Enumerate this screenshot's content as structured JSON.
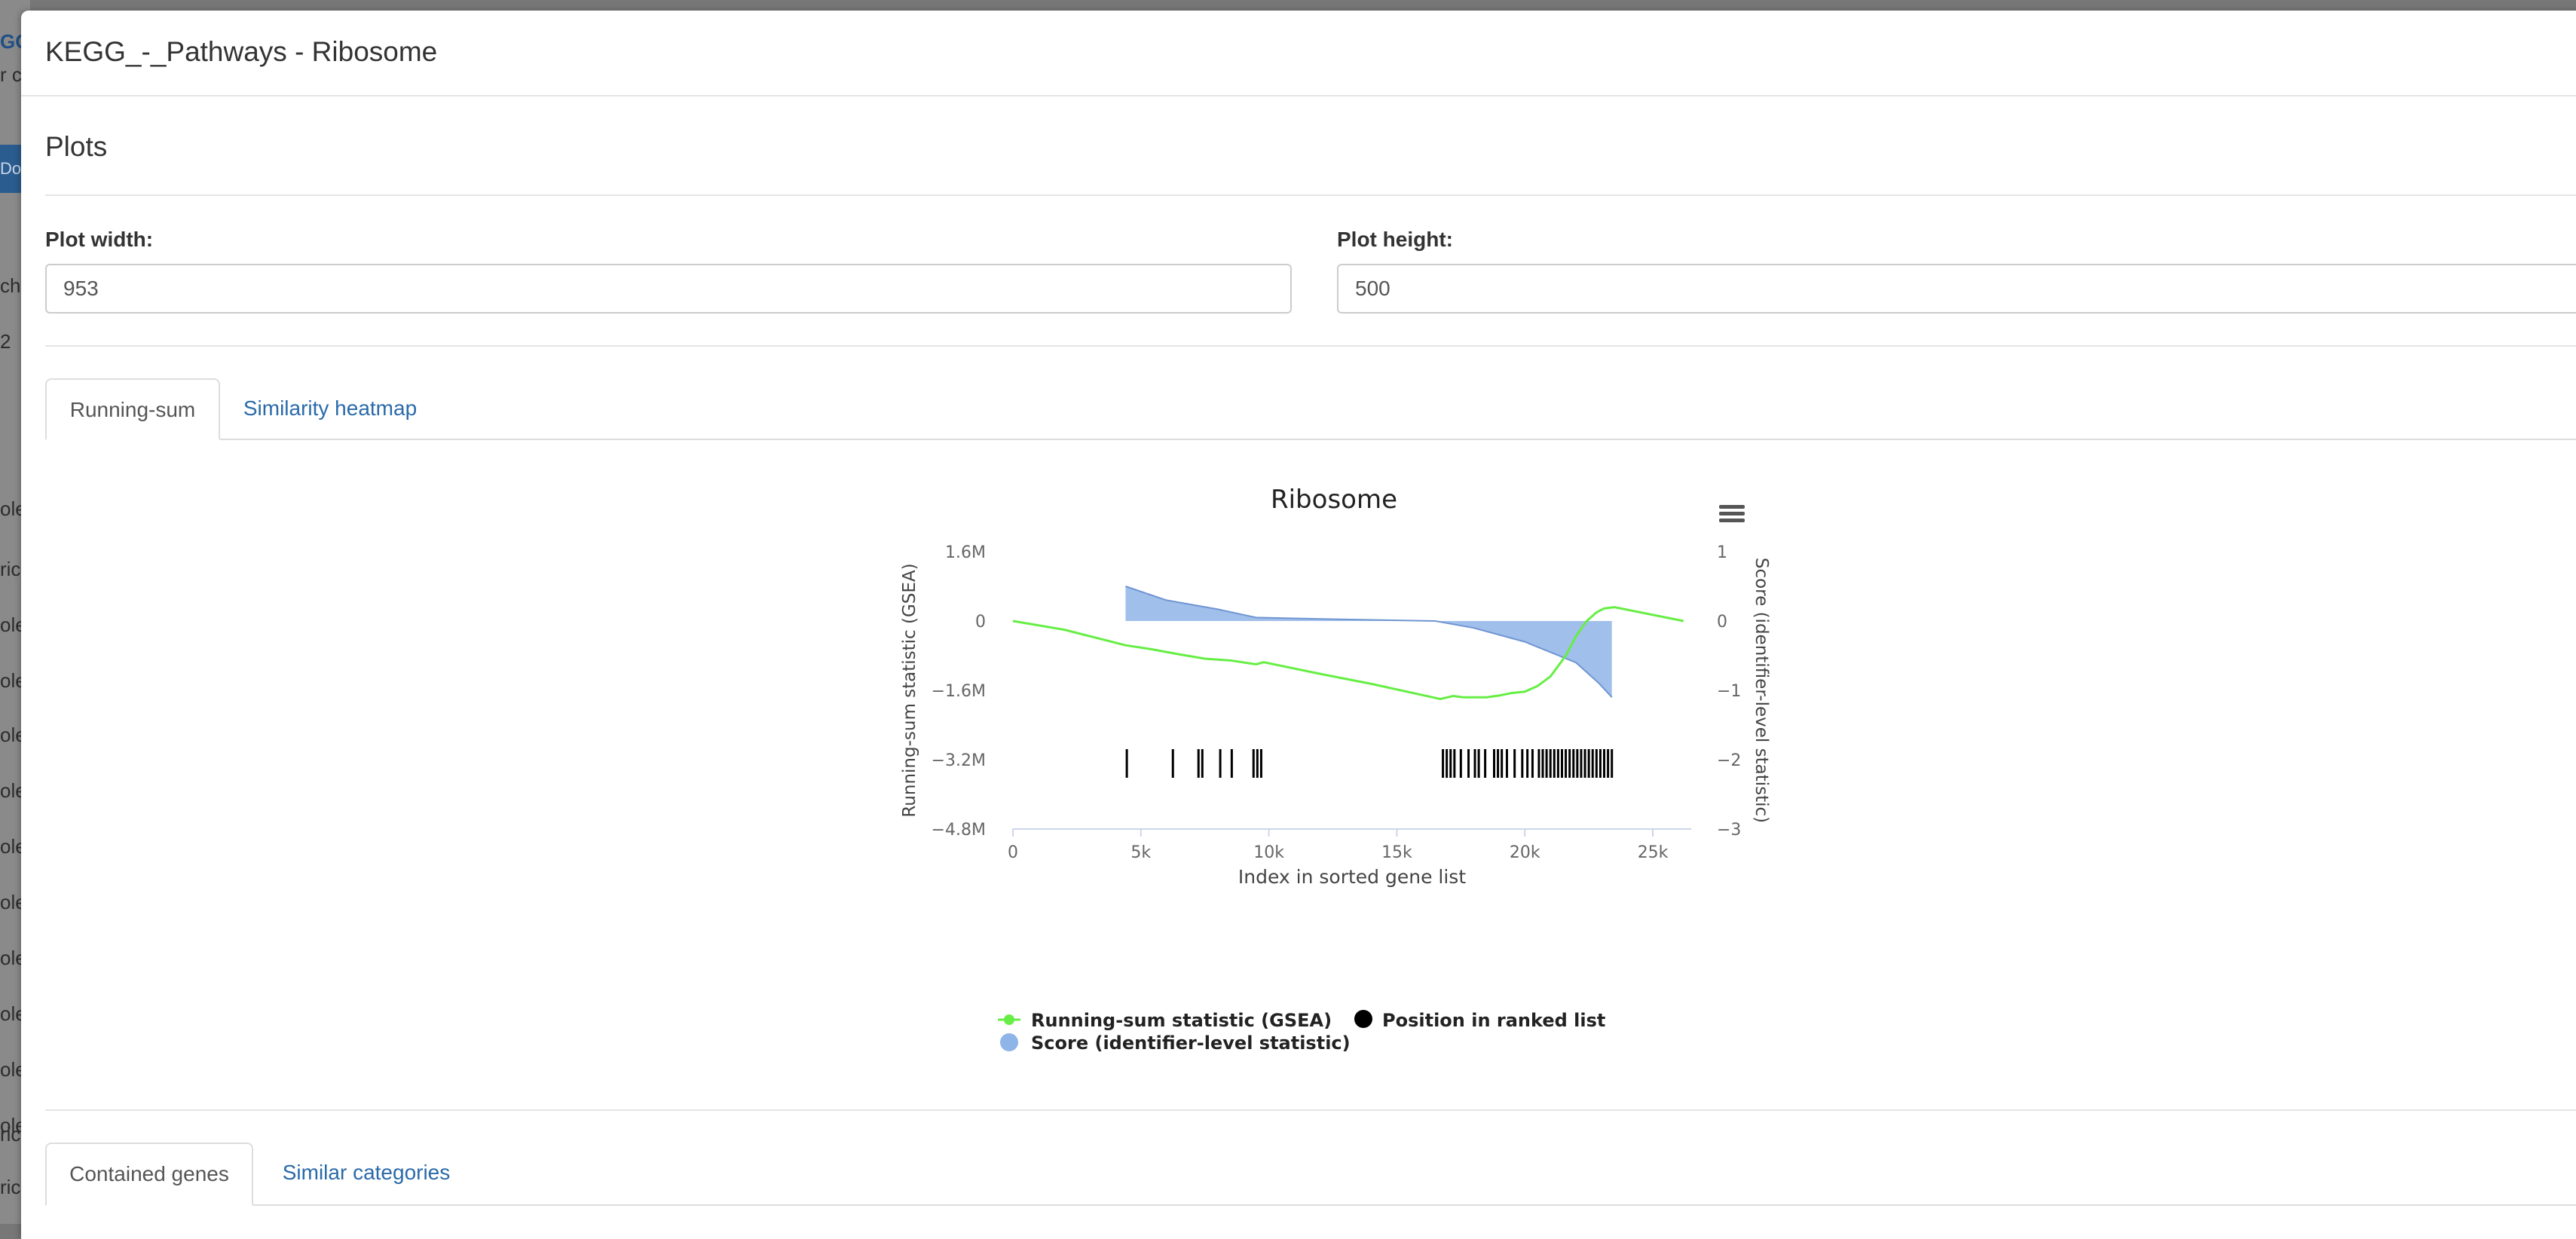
{
  "background": {
    "fragments": [
      "GC",
      "r c",
      "Dou",
      "chr",
      "2",
      "ole",
      "ricl",
      "ole",
      "ole",
      "ole",
      "ole",
      "ole",
      "ole",
      "ole",
      "ole",
      "ole",
      "ole",
      "ricl",
      "ricl"
    ]
  },
  "modal": {
    "title": "KEGG_-_Pathways - Ribosome",
    "section_title": "Plots",
    "plot_width_label": "Plot width:",
    "plot_width_value": "953",
    "plot_height_label": "Plot height:",
    "plot_height_value": "500",
    "plot_tabs": [
      {
        "label": "Running-sum",
        "active": true
      },
      {
        "label": "Similarity heatmap",
        "active": false
      }
    ],
    "bottom_tabs": [
      {
        "label": "Contained genes",
        "active": true
      },
      {
        "label": "Similar categories",
        "active": false
      }
    ]
  },
  "chart_data": {
    "type": "line",
    "title": "Ribosome",
    "xlabel": "Index in sorted gene list",
    "ylabel_left": "Running-sum statistic (GSEA)",
    "ylabel_right": "Score (identifier-level statistic)",
    "xlim": [
      0,
      26500
    ],
    "ylim_left": [
      -4800000,
      1600000
    ],
    "ylim_right": [
      -3,
      1
    ],
    "x_ticks": [
      "0",
      "5k",
      "10k",
      "15k",
      "20k",
      "25k"
    ],
    "y_left_ticks": [
      "1.6M",
      "0",
      "−1.6M",
      "−3.2M",
      "−4.8M"
    ],
    "y_right_ticks": [
      "1",
      "0",
      "−1",
      "−2",
      "−3"
    ],
    "colors": {
      "running_sum": "#66ee44",
      "score": "#8fb4e8",
      "position": "#000000"
    },
    "legend": {
      "running_sum": "Running-sum statistic (GSEA)",
      "position": "Position in ranked list",
      "score": "Score (identifier-level statistic)"
    },
    "series": [
      {
        "name": "Running-sum statistic (GSEA)",
        "axis": "left",
        "points": [
          [
            0,
            0
          ],
          [
            2000,
            -200000
          ],
          [
            4400,
            -560000
          ],
          [
            5400,
            -650000
          ],
          [
            6500,
            -770000
          ],
          [
            7500,
            -870000
          ],
          [
            8500,
            -910000
          ],
          [
            9500,
            -1000000
          ],
          [
            9800,
            -950000
          ],
          [
            12000,
            -1220000
          ],
          [
            14000,
            -1450000
          ],
          [
            16700,
            -1800000
          ],
          [
            17200,
            -1730000
          ],
          [
            17600,
            -1760000
          ],
          [
            18500,
            -1760000
          ],
          [
            19000,
            -1720000
          ],
          [
            19500,
            -1660000
          ],
          [
            20000,
            -1630000
          ],
          [
            20500,
            -1500000
          ],
          [
            21000,
            -1280000
          ],
          [
            21600,
            -800000
          ],
          [
            22000,
            -350000
          ],
          [
            22400,
            -10000
          ],
          [
            22800,
            200000
          ],
          [
            23100,
            290000
          ],
          [
            23500,
            320000
          ],
          [
            26200,
            0
          ]
        ]
      },
      {
        "name": "Score (identifier-level statistic)",
        "axis": "right",
        "points": [
          [
            4400,
            0.5
          ],
          [
            6000,
            0.3
          ],
          [
            8000,
            0.17
          ],
          [
            9500,
            0.05
          ],
          [
            12000,
            0.03
          ],
          [
            16500,
            0.0
          ],
          [
            18000,
            -0.1
          ],
          [
            20000,
            -0.3
          ],
          [
            22000,
            -0.6
          ],
          [
            22900,
            -0.9
          ],
          [
            23400,
            -1.1
          ]
        ]
      }
    ],
    "positions": [
      4450,
      6250,
      7250,
      7400,
      8100,
      8550,
      9400,
      9550,
      9700,
      16800,
      16950,
      17100,
      17250,
      17500,
      17800,
      18050,
      18200,
      18450,
      18800,
      18950,
      19100,
      19300,
      19600,
      19900,
      20100,
      20300,
      20550,
      20700,
      20850,
      21000,
      21150,
      21300,
      21450,
      21600,
      21750,
      21900,
      22050,
      22200,
      22350,
      22500,
      22650,
      22800,
      22950,
      23100,
      23250,
      23400
    ]
  }
}
